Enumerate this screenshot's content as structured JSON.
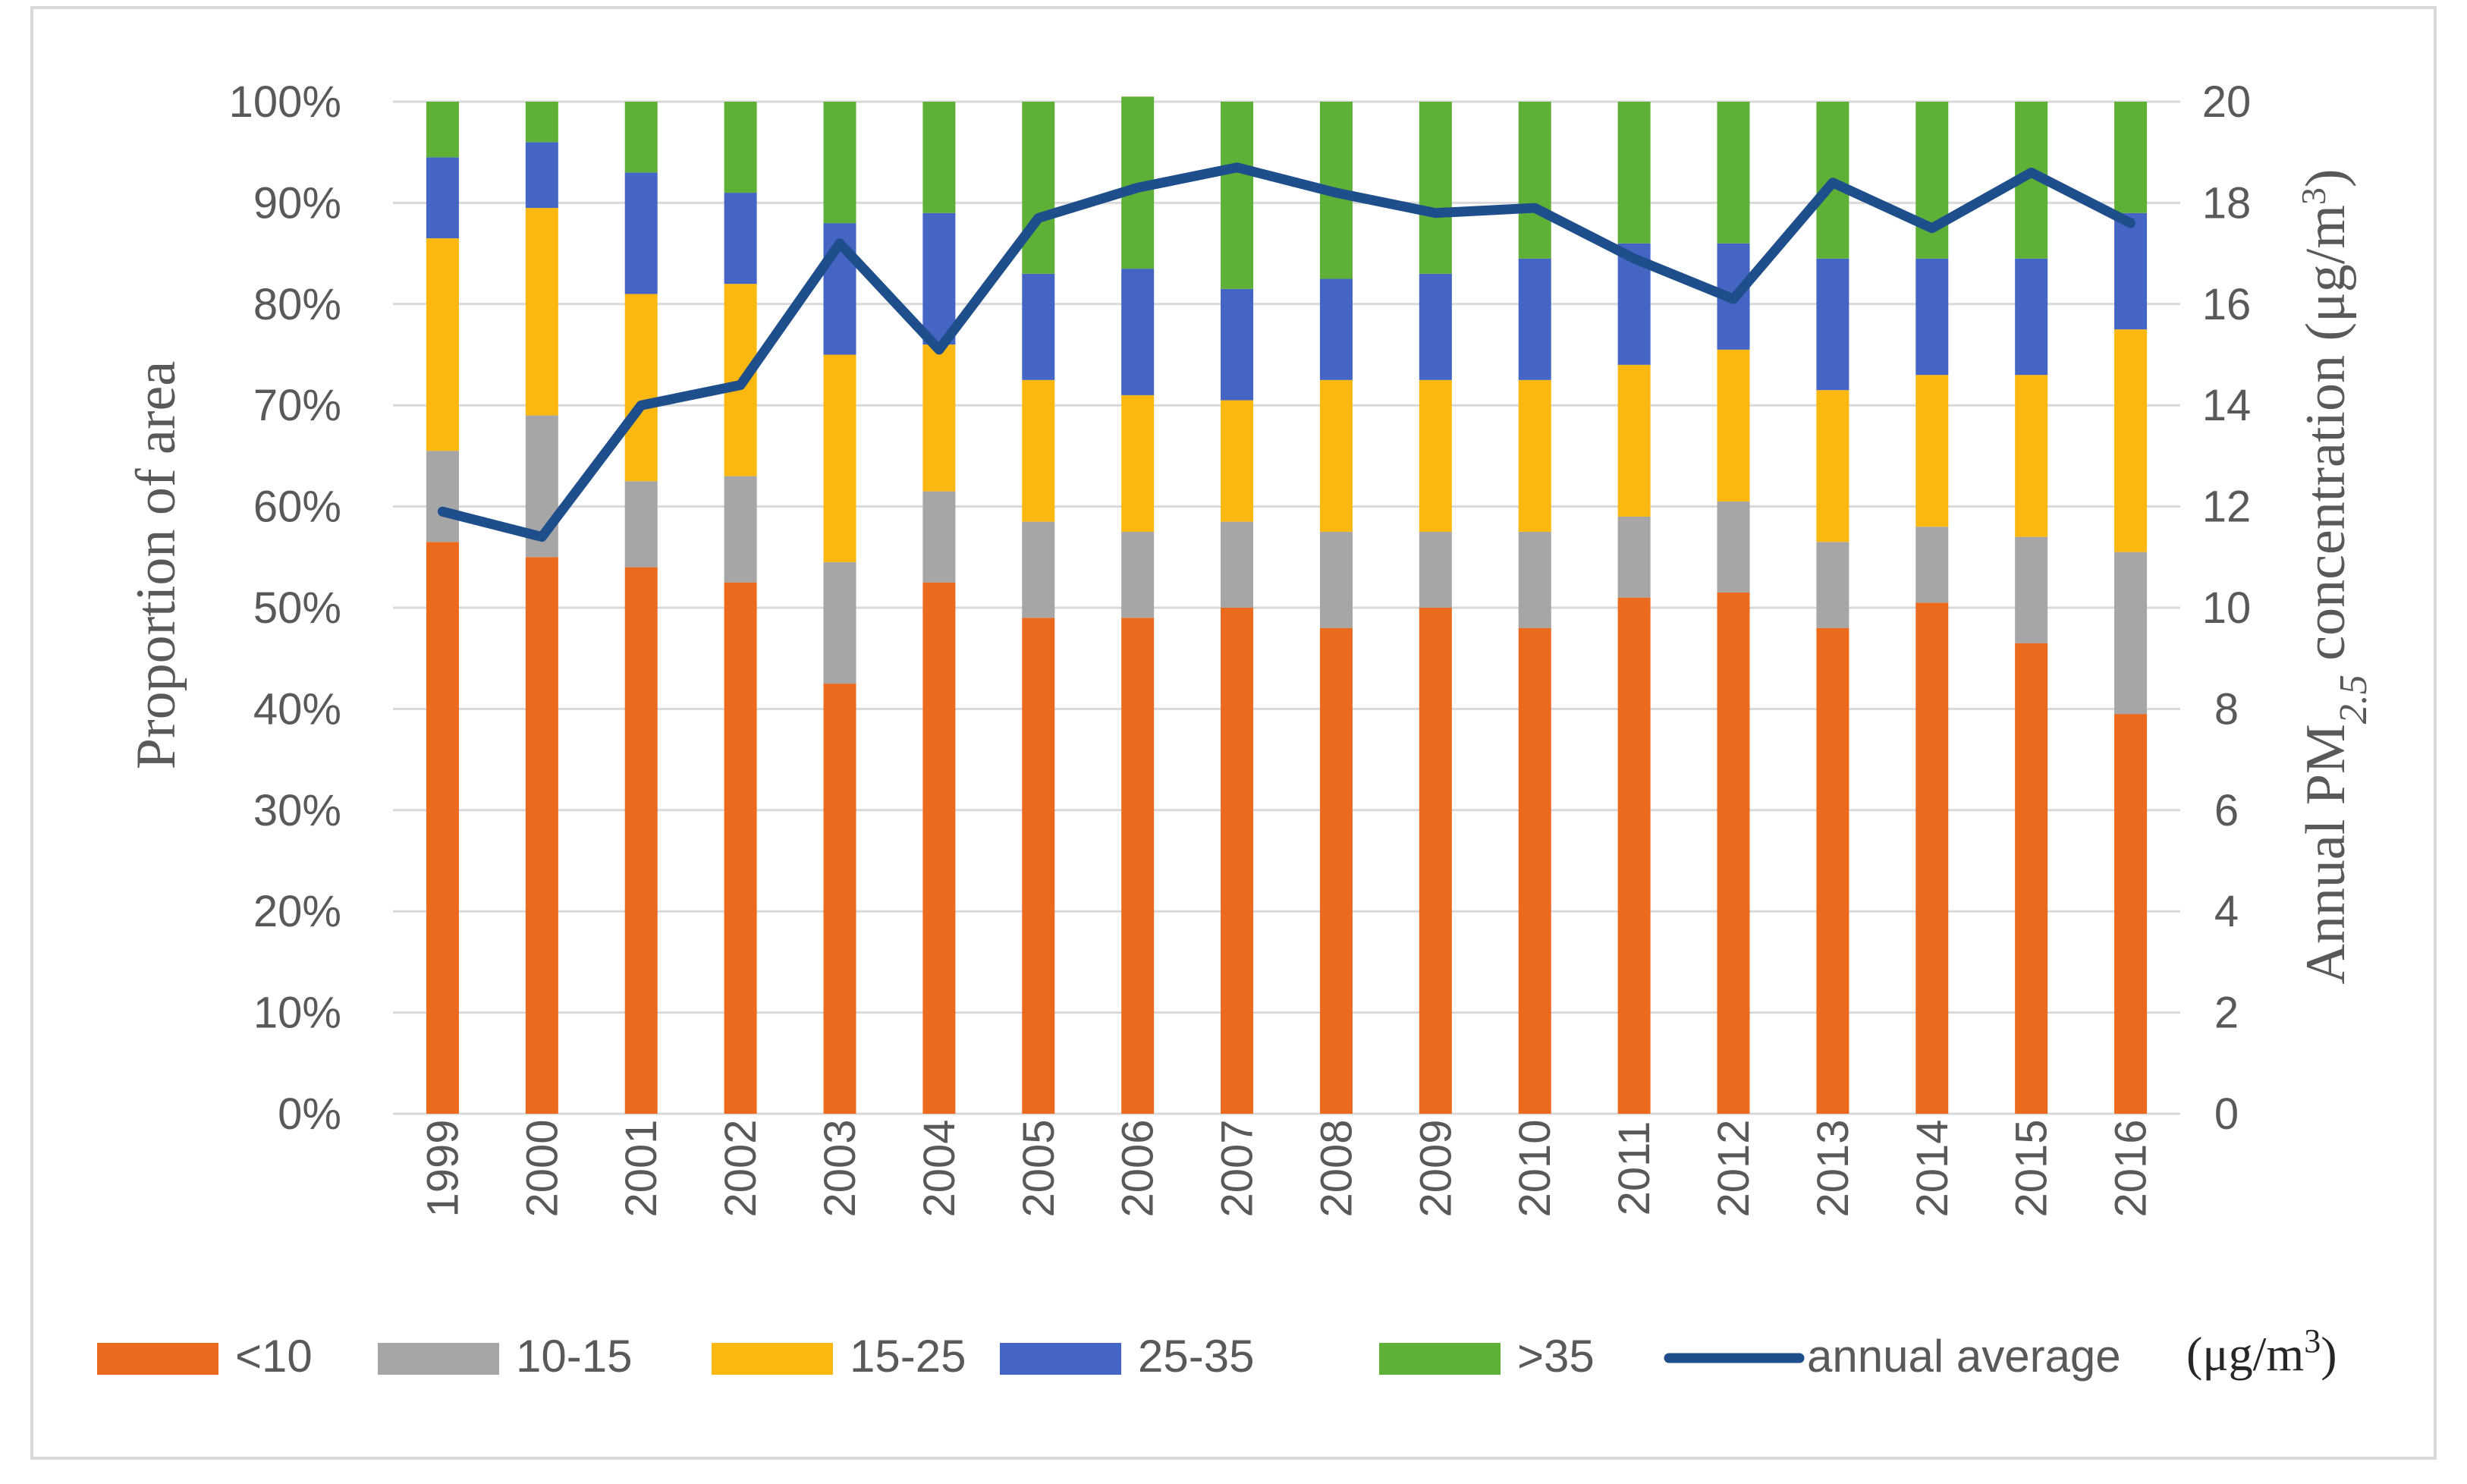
{
  "chart_data": {
    "type": "bar",
    "stacked": true,
    "categories": [
      "1999",
      "2000",
      "2001",
      "2002",
      "2003",
      "2004",
      "2005",
      "2006",
      "2007",
      "2008",
      "2009",
      "2010",
      "2011",
      "2012",
      "2013",
      "2014",
      "2015",
      "2016"
    ],
    "series": [
      {
        "name": "<10",
        "color": "#eb6a1d",
        "values": [
          56.5,
          55,
          54,
          52.5,
          42.5,
          52.5,
          49,
          49,
          50,
          48,
          50,
          48,
          51,
          51.5,
          48,
          50.5,
          46.5,
          39.5
        ]
      },
      {
        "name": "10-15",
        "color": "#a6a6a6",
        "values": [
          9,
          14,
          8.5,
          10.5,
          12,
          9,
          9.5,
          8.5,
          8.5,
          9.5,
          7.5,
          9.5,
          8,
          9,
          8.5,
          7.5,
          10.5,
          16
        ]
      },
      {
        "name": "15-25",
        "color": "#fbb811",
        "values": [
          21,
          20.5,
          18.5,
          19,
          20.5,
          14.5,
          14,
          13.5,
          12,
          15,
          15,
          15,
          15,
          15,
          15,
          15,
          16,
          22
        ]
      },
      {
        "name": "25-35",
        "color": "#4565c4",
        "values": [
          8,
          6.5,
          12,
          9,
          13,
          13,
          10.5,
          12.5,
          11,
          10,
          10.5,
          12,
          12,
          10.5,
          13,
          11.5,
          11.5,
          11.5
        ]
      },
      {
        "name": ">35",
        "color": "#5fb036",
        "values": [
          5.5,
          4,
          7,
          9,
          12,
          11,
          17,
          17,
          18.5,
          17.5,
          17,
          15.5,
          14,
          14,
          15.5,
          15.5,
          15.5,
          11
        ]
      }
    ],
    "line_series": {
      "name": "annual average",
      "color": "#1f4e8c",
      "values": [
        11.9,
        11.4,
        14.0,
        14.4,
        17.2,
        15.1,
        17.7,
        18.3,
        18.7,
        18.2,
        17.8,
        17.9,
        16.9,
        16.1,
        18.4,
        17.5,
        18.6,
        17.6
      ]
    },
    "y_left": {
      "label": "Proportion of area",
      "ticks": [
        "0%",
        "10%",
        "20%",
        "30%",
        "40%",
        "50%",
        "60%",
        "70%",
        "80%",
        "90%",
        "100%"
      ],
      "range": [
        0,
        100
      ]
    },
    "y_right": {
      "label_main": "Annual PM",
      "label_sub": "2.5",
      "label_rest": " concentration (μg/m",
      "label_sup": "3",
      "label_close": ")",
      "ticks": [
        "0",
        "2",
        "4",
        "6",
        "8",
        "10",
        "12",
        "14",
        "16",
        "18",
        "20"
      ],
      "range": [
        0,
        20
      ]
    },
    "unit_note": {
      "text": "(μg/m",
      "sup": "3",
      "close": ")"
    },
    "legend_position": "bottom"
  }
}
